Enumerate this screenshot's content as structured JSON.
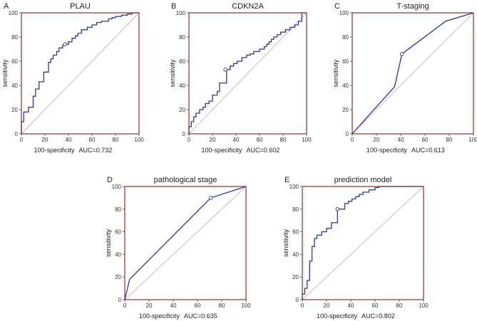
{
  "chart_data": [
    {
      "panel": "A",
      "title": "PLAU",
      "type": "line",
      "xlabel": "100-specificity",
      "auc_label": "AUC=0.732",
      "ylabel": "sensitivity",
      "xlim": [
        0,
        100
      ],
      "ylim": [
        0,
        100
      ],
      "xticks": [
        "0",
        "20",
        "40",
        "60",
        "80",
        "100"
      ],
      "yticks": [
        "0",
        "20",
        "40",
        "60",
        "80",
        "100"
      ],
      "cutoff": [
        37,
        74
      ],
      "x": [
        0,
        0,
        2,
        2,
        6,
        6,
        10,
        10,
        12,
        12,
        15,
        15,
        19,
        19,
        23,
        23,
        25,
        25,
        27,
        27,
        30,
        30,
        32,
        32,
        35,
        35,
        37,
        37,
        40,
        40,
        43,
        43,
        46,
        46,
        48,
        48,
        51,
        51,
        56,
        56,
        60,
        60,
        64,
        64,
        68,
        68,
        74,
        74,
        77,
        77,
        80,
        80,
        85,
        85,
        90,
        90,
        94,
        94,
        100
      ],
      "y": [
        0,
        10,
        10,
        18,
        18,
        22,
        22,
        31,
        31,
        37,
        37,
        43,
        43,
        51,
        51,
        59,
        59,
        62,
        62,
        65,
        65,
        68,
        68,
        71,
        71,
        73,
        73,
        74,
        74,
        76,
        76,
        79,
        79,
        81,
        81,
        83,
        83,
        86,
        86,
        88,
        88,
        90,
        90,
        92,
        92,
        93,
        93,
        95,
        95,
        96,
        96,
        97,
        97,
        98,
        98,
        99,
        99,
        100,
        100
      ]
    },
    {
      "panel": "B",
      "title": "CDKN2A",
      "type": "line",
      "xlabel": "100-specificity",
      "auc_label": "AUC=0.602",
      "ylabel": "sensitivity",
      "xlim": [
        0,
        100
      ],
      "ylim": [
        0,
        100
      ],
      "xticks": [
        "0",
        "20",
        "40",
        "60",
        "80",
        "100"
      ],
      "yticks": [
        "0",
        "20",
        "40",
        "60",
        "80",
        "100"
      ],
      "cutoff": [
        31,
        53
      ],
      "x": [
        0,
        0,
        2,
        2,
        4,
        4,
        6,
        6,
        9,
        9,
        12,
        12,
        14,
        14,
        17,
        17,
        20,
        20,
        24,
        24,
        26,
        26,
        32,
        32,
        35,
        35,
        38,
        38,
        41,
        41,
        45,
        45,
        49,
        49,
        52,
        52,
        55,
        55,
        60,
        60,
        64,
        64,
        66,
        66,
        68,
        68,
        70,
        70,
        72,
        72,
        75,
        75,
        78,
        78,
        82,
        82,
        86,
        86,
        90,
        90,
        93,
        93,
        96,
        96,
        100
      ],
      "y": [
        0,
        6,
        6,
        10,
        10,
        14,
        14,
        17,
        17,
        20,
        20,
        22,
        22,
        25,
        25,
        27,
        27,
        32,
        32,
        35,
        35,
        42,
        42,
        53,
        53,
        56,
        56,
        58,
        58,
        60,
        60,
        63,
        63,
        65,
        65,
        66,
        66,
        68,
        68,
        70,
        70,
        72,
        72,
        74,
        74,
        76,
        76,
        78,
        78,
        80,
        80,
        82,
        82,
        84,
        84,
        86,
        86,
        88,
        88,
        90,
        90,
        93,
        93,
        100,
        100
      ]
    },
    {
      "panel": "C",
      "title": "T-staging",
      "type": "line",
      "xlabel": "100-specificity",
      "auc_label": "AUC=0.613",
      "ylabel": "sensitivity",
      "xlim": [
        0,
        100
      ],
      "ylim": [
        0,
        100
      ],
      "xticks": [
        "0",
        "20",
        "40",
        "60",
        "80",
        "100"
      ],
      "yticks": [
        "0",
        "20",
        "40",
        "60",
        "80",
        "100"
      ],
      "cutoff": [
        41,
        66
      ],
      "x": [
        0,
        35,
        41,
        77,
        100
      ],
      "y": [
        0,
        39,
        66,
        93,
        100
      ]
    },
    {
      "panel": "D",
      "title": "pathological stage",
      "type": "line",
      "xlabel": "100-specificity",
      "auc_label": "AUC=0.635",
      "ylabel": "sensitivity",
      "xlim": [
        0,
        100
      ],
      "ylim": [
        0,
        100
      ],
      "xticks": [
        "0",
        "20",
        "40",
        "60",
        "80",
        "100"
      ],
      "yticks": [
        "0",
        "20",
        "40",
        "60",
        "80",
        "100"
      ],
      "cutoff": [
        71,
        90
      ],
      "x": [
        0,
        4,
        71,
        100
      ],
      "y": [
        0,
        18,
        90,
        100
      ]
    },
    {
      "panel": "E",
      "title": "prediction model",
      "type": "line",
      "xlabel": "100-specificity",
      "auc_label": "AUC=0.802",
      "ylabel": "sensitivity",
      "xlim": [
        0,
        100
      ],
      "ylim": [
        0,
        100
      ],
      "xticks": [
        "0",
        "20",
        "40",
        "60",
        "80",
        "100"
      ],
      "yticks": [
        "0",
        "20",
        "40",
        "60",
        "80",
        "100"
      ],
      "cutoff": [
        29,
        80
      ],
      "x": [
        0,
        0,
        2,
        2,
        4,
        4,
        6,
        6,
        8,
        8,
        10,
        10,
        12,
        12,
        16,
        16,
        20,
        20,
        24,
        24,
        29,
        29,
        35,
        35,
        38,
        38,
        41,
        41,
        44,
        44,
        47,
        47,
        50,
        50,
        55,
        55,
        60,
        60,
        63,
        63,
        100
      ],
      "y": [
        0,
        5,
        5,
        10,
        10,
        17,
        17,
        34,
        34,
        47,
        47,
        54,
        54,
        57,
        57,
        60,
        60,
        63,
        63,
        68,
        68,
        80,
        80,
        85,
        85,
        87,
        87,
        89,
        89,
        91,
        91,
        93,
        93,
        95,
        95,
        97,
        97,
        99,
        99,
        100,
        100
      ]
    }
  ],
  "colors": {
    "curve": "#2b35b0",
    "diagonal": "#c9b3c6",
    "frame": "#8b1a1a",
    "text": "#222222"
  }
}
